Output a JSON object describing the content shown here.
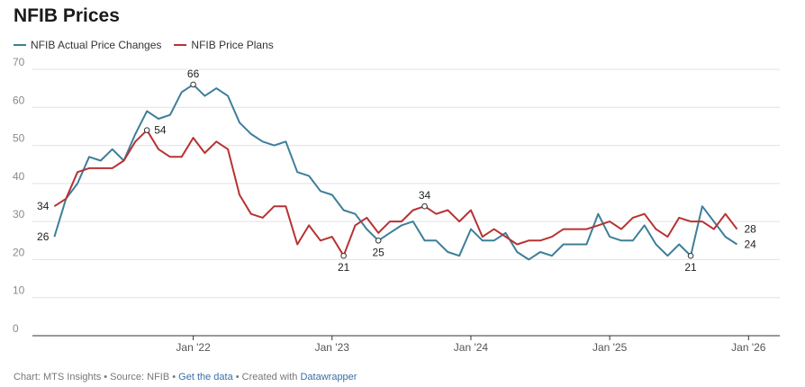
{
  "chart_data": {
    "type": "line",
    "title": "NFIB Prices",
    "xlabel": "",
    "ylabel": "",
    "ylim": [
      0,
      70
    ],
    "yticks": [
      0,
      10,
      20,
      30,
      40,
      50,
      60,
      70
    ],
    "x_tick_labels": [
      "Jan '22",
      "Jan '23",
      "Jan '24",
      "Jan '25",
      "Jan '26"
    ],
    "x_tick_months": [
      12,
      24,
      36,
      48,
      60
    ],
    "x_range_months": [
      -1.9,
      62.7
    ],
    "series": [
      {
        "name": "NFIB Actual Price Changes",
        "color": "#3d7f99",
        "start_month": 0,
        "values": [
          26,
          36,
          40,
          47,
          46,
          49,
          46,
          53,
          59,
          57,
          58,
          64,
          66,
          63,
          65,
          63,
          56,
          53,
          51,
          50,
          51,
          43,
          42,
          38,
          37,
          33,
          32,
          28,
          25,
          27,
          29,
          30,
          25,
          25,
          22,
          21,
          28,
          25,
          25,
          27,
          22,
          20,
          22,
          21,
          24,
          24,
          24,
          32,
          26,
          25,
          25,
          29,
          24,
          21,
          24,
          21,
          34,
          30,
          26,
          24
        ],
        "labeled_points": [
          {
            "index": 0,
            "label": "26",
            "pos": "left",
            "marker": false
          },
          {
            "index": 12,
            "label": "66",
            "pos": "above",
            "marker": true
          },
          {
            "index": 28,
            "label": "25",
            "pos": "below",
            "marker": true
          },
          {
            "index": 55,
            "label": "21",
            "pos": "below",
            "marker": true
          },
          {
            "index": 59,
            "label": "24",
            "pos": "right",
            "marker": false
          }
        ]
      },
      {
        "name": "NFIB Price Plans",
        "color": "#b83232",
        "start_month": 0,
        "values": [
          34,
          36,
          43,
          44,
          44,
          44,
          46,
          51,
          54,
          49,
          47,
          47,
          52,
          48,
          51,
          49,
          37,
          32,
          31,
          34,
          34,
          24,
          29,
          25,
          26,
          21,
          29,
          31,
          27,
          30,
          30,
          33,
          34,
          32,
          33,
          30,
          33,
          26,
          28,
          26,
          24,
          25,
          25,
          26,
          28,
          28,
          28,
          29,
          30,
          28,
          31,
          32,
          28,
          26,
          31,
          30,
          30,
          28,
          32,
          28
        ],
        "labeled_points": [
          {
            "index": 0,
            "label": "34",
            "pos": "left",
            "marker": false
          },
          {
            "index": 8,
            "label": "54",
            "pos": "right",
            "marker": true
          },
          {
            "index": 25,
            "label": "21",
            "pos": "below",
            "marker": true
          },
          {
            "index": 32,
            "label": "34",
            "pos": "above",
            "marker": true
          },
          {
            "index": 59,
            "label": "28",
            "pos": "right",
            "marker": false
          }
        ]
      }
    ]
  },
  "footer": {
    "source_text": "Chart: MTS Insights • Source: NFIB • ",
    "get_data_link": "Get the data",
    "separator": " • Created with ",
    "datawrapper_link": "Datawrapper"
  }
}
